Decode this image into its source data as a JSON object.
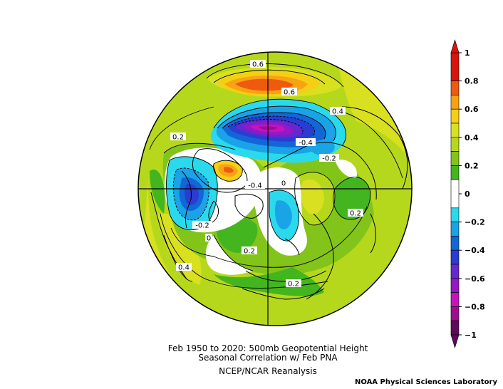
{
  "figure": {
    "title_line1": "Feb 1950 to 2020: 500mb Geopotential Height",
    "title_line2": "Seasonal Correlation w/ Feb PNA",
    "dataset": "NCEP/NCAR Reanalysis",
    "credit": "NOAA Physical Sciences Laboratory"
  },
  "map": {
    "projection": "north-polar-stereographic",
    "field": "correlation",
    "contour_labels": [
      {
        "text": "0.6"
      },
      {
        "text": "0.6"
      },
      {
        "text": "0.4"
      },
      {
        "text": "0.2"
      },
      {
        "text": "-0.4"
      },
      {
        "text": "-0.2"
      },
      {
        "text": "-0.4"
      },
      {
        "text": "0"
      },
      {
        "text": "0.2"
      },
      {
        "text": "-0.2"
      },
      {
        "text": "0"
      },
      {
        "text": "0.2"
      },
      {
        "text": "0.4"
      },
      {
        "text": "0.2"
      }
    ]
  },
  "colorbar": {
    "ticks": [
      "1",
      "0.8",
      "0.6",
      "0.4",
      "0.2",
      "0",
      "−0.2",
      "−0.4",
      "−0.6",
      "−0.8",
      "−1"
    ],
    "bins": [
      {
        "from": 0.8,
        "to": 1.0,
        "color": "#d8140c"
      },
      {
        "from": 0.7,
        "to": 0.8,
        "color": "#ee5a10"
      },
      {
        "from": 0.6,
        "to": 0.7,
        "color": "#f7a314"
      },
      {
        "from": 0.5,
        "to": 0.6,
        "color": "#f5cf14"
      },
      {
        "from": 0.4,
        "to": 0.5,
        "color": "#d9e020"
      },
      {
        "from": 0.3,
        "to": 0.4,
        "color": "#b6d81c"
      },
      {
        "from": 0.2,
        "to": 0.3,
        "color": "#82c41a"
      },
      {
        "from": 0.1,
        "to": 0.2,
        "color": "#43b51e"
      },
      {
        "from": -0.1,
        "to": 0.1,
        "color": "#ffffff"
      },
      {
        "from": -0.2,
        "to": -0.1,
        "color": "#2bd9ec"
      },
      {
        "from": -0.3,
        "to": -0.2,
        "color": "#1aa3e6"
      },
      {
        "from": -0.4,
        "to": -0.3,
        "color": "#1266d6"
      },
      {
        "from": -0.5,
        "to": -0.4,
        "color": "#2a3cd2"
      },
      {
        "from": -0.6,
        "to": -0.5,
        "color": "#6428cf"
      },
      {
        "from": -0.7,
        "to": -0.6,
        "color": "#9418c6"
      },
      {
        "from": -0.8,
        "to": -0.7,
        "color": "#c514bc"
      },
      {
        "from": -0.9,
        "to": -0.8,
        "color": "#9c0e8e"
      },
      {
        "from": -1.0,
        "to": -0.9,
        "color": "#5c0a5c"
      }
    ],
    "max_arrow_color": "#d8140c",
    "min_arrow_color": "#5c0a5c"
  }
}
